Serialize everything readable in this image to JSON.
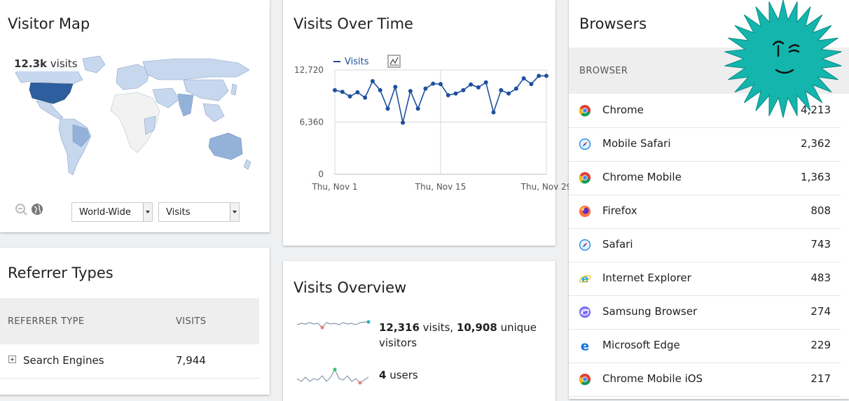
{
  "visitor_map": {
    "title": "Visitor Map",
    "tooltip_value": "12.3k",
    "tooltip_suffix": "visits",
    "region_select": "World-Wide",
    "metric_select": "Visits",
    "zoom_out_icon": "zoom-out-icon",
    "globe_icon": "globe-icon",
    "colors": {
      "highlight": "#2d5f9e",
      "light": "#c7d7ee",
      "medium": "#94b2d9",
      "none": "#f2f2f2"
    }
  },
  "visits_over_time": {
    "title": "Visits Over Time",
    "legend": "Visits",
    "chart_icon": "chart-type-icon"
  },
  "chart_data": {
    "type": "line",
    "series": [
      {
        "name": "Visits",
        "values": [
          10250,
          10050,
          9500,
          10000,
          9350,
          11350,
          10250,
          8000,
          10650,
          6300,
          10150,
          8000,
          10450,
          11050,
          11000,
          9650,
          9850,
          10250,
          10950,
          10600,
          11200,
          7550,
          10250,
          9850,
          10450,
          11700,
          11000,
          12000,
          12000
        ]
      }
    ],
    "x_tick_labels": [
      "Thu, Nov 1",
      "Thu, Nov 15",
      "Thu, Nov 29"
    ],
    "y_tick_labels": [
      "12,720",
      "6,360",
      "0"
    ],
    "ylim": [
      0,
      12720
    ],
    "grid": true,
    "legend_position": "top-left",
    "color": "#1f4f9e"
  },
  "visits_overview": {
    "title": "Visits Overview",
    "stats": [
      {
        "value_a": "12,316",
        "text_a": " visits, ",
        "value_b": "10,908",
        "text_b": " unique visitors"
      },
      {
        "value_a": "4",
        "text_a": " users",
        "value_b": "",
        "text_b": ""
      }
    ]
  },
  "referrer_types": {
    "title": "Referrer Types",
    "col_type": "REFERRER TYPE",
    "col_visits": "VISITS",
    "rows": [
      {
        "label": "Search Engines",
        "visits": "7,944",
        "expand_icon": "expand-plus-icon"
      }
    ]
  },
  "browsers": {
    "title": "Browsers",
    "col_browser": "BROWSER",
    "rows": [
      {
        "name": "Chrome",
        "visits": "4,213",
        "icon": "chrome-icon"
      },
      {
        "name": "Mobile Safari",
        "visits": "2,362",
        "icon": "safari-icon"
      },
      {
        "name": "Chrome Mobile",
        "visits": "1,363",
        "icon": "chrome-icon"
      },
      {
        "name": "Firefox",
        "visits": "808",
        "icon": "firefox-icon"
      },
      {
        "name": "Safari",
        "visits": "743",
        "icon": "safari-icon"
      },
      {
        "name": "Internet Explorer",
        "visits": "483",
        "icon": "ie-icon"
      },
      {
        "name": "Samsung Browser",
        "visits": "274",
        "icon": "samsung-browser-icon"
      },
      {
        "name": "Microsoft Edge",
        "visits": "229",
        "icon": "edge-icon"
      },
      {
        "name": "Chrome Mobile iOS",
        "visits": "217",
        "icon": "chrome-icon"
      }
    ]
  },
  "overlay": {
    "sticker_icon": "winking-face-starburst-icon",
    "sticker_color": "#13b5ad"
  }
}
